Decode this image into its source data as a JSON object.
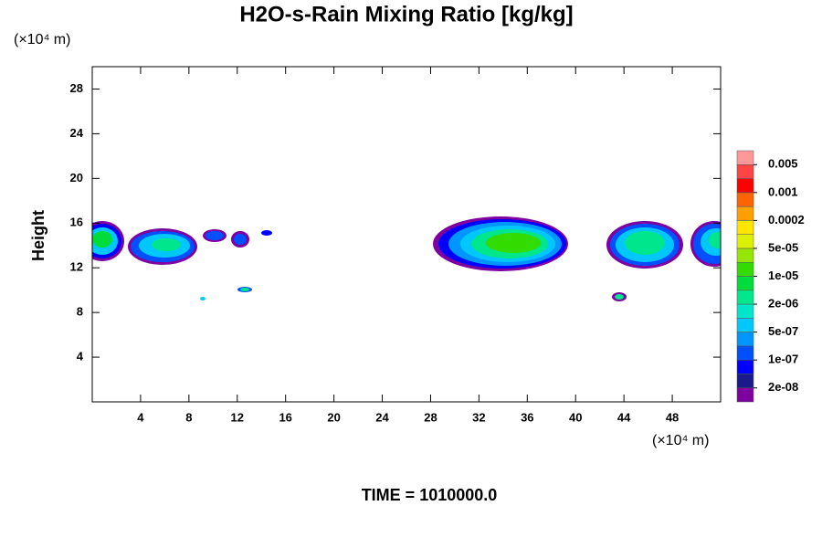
{
  "chart_data": {
    "type": "contour",
    "title": "H2O-s-Rain Mixing Ratio [kg/kg]",
    "y_unit": "(×10⁴ m)",
    "x_unit": "(×10⁴ m)",
    "ylabel": "Height",
    "footer": "TIME = 1010000.0",
    "xlim": [
      0,
      52
    ],
    "ylim": [
      0,
      30
    ],
    "xticks": [
      4,
      8,
      12,
      16,
      20,
      24,
      28,
      32,
      36,
      40,
      44,
      48
    ],
    "yticks": [
      4,
      8,
      12,
      16,
      20,
      24,
      28
    ],
    "colorbar": {
      "colors": [
        "#7f00a0",
        "#1a1a8c",
        "#0000ff",
        "#0050ff",
        "#0096ff",
        "#00c8ff",
        "#00e6c8",
        "#00e68c",
        "#00dc3c",
        "#32dc00",
        "#96e600",
        "#dcf000",
        "#ffe600",
        "#ffa000",
        "#ff6400",
        "#ff0000",
        "#ff4444",
        "#ff9999"
      ],
      "ticks": [
        {
          "value": 2e-08,
          "label": "2e-08"
        },
        {
          "value": 1e-07,
          "label": "1e-07"
        },
        {
          "value": 5e-07,
          "label": "5e-07"
        },
        {
          "value": 2e-06,
          "label": "2e-06"
        },
        {
          "value": 1e-05,
          "label": "1e-05"
        },
        {
          "value": 5e-05,
          "label": "5e-05"
        },
        0.0002,
        0.001,
        0.005
      ]
    }
  }
}
